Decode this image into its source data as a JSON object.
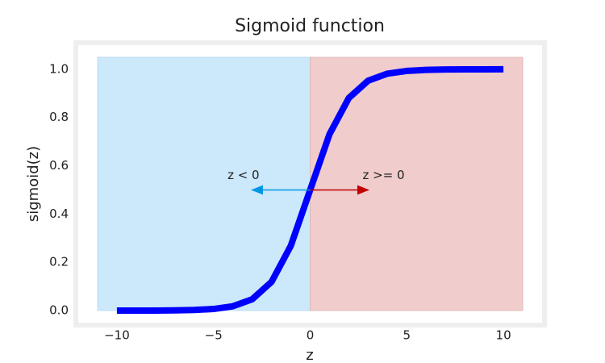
{
  "chart_data": {
    "type": "line",
    "title": "Sigmoid function",
    "x_label": "z",
    "y_label": "sigmoid(z)",
    "x": [
      -10,
      -9,
      -8,
      -7,
      -6,
      -5,
      -4,
      -3,
      -2,
      -1,
      0,
      1,
      2,
      3,
      4,
      5,
      6,
      7,
      8,
      9,
      10
    ],
    "series": [
      {
        "name": "sigmoid",
        "color": "#0000ff",
        "values": [
          0.0,
          0.0001,
          0.0003,
          0.0009,
          0.0025,
          0.0067,
          0.018,
          0.047,
          0.119,
          0.269,
          0.5,
          0.731,
          0.881,
          0.953,
          0.982,
          0.9933,
          0.9975,
          0.9991,
          0.9997,
          0.9999,
          1.0
        ]
      }
    ],
    "xlim": [
      -12,
      12
    ],
    "ylim": [
      -0.05,
      1.1
    ],
    "xticks": [
      {
        "value": -10,
        "label": "−10"
      },
      {
        "value": -5,
        "label": "−5"
      },
      0,
      5,
      10
    ],
    "yticks": [
      {
        "value": 0,
        "label": "0.0"
      },
      0.2,
      0.4,
      0.6,
      0.8,
      {
        "value": 1,
        "label": "1.0"
      }
    ],
    "grid": false,
    "annotations": [
      "z < 0",
      "z >= 0"
    ]
  }
}
